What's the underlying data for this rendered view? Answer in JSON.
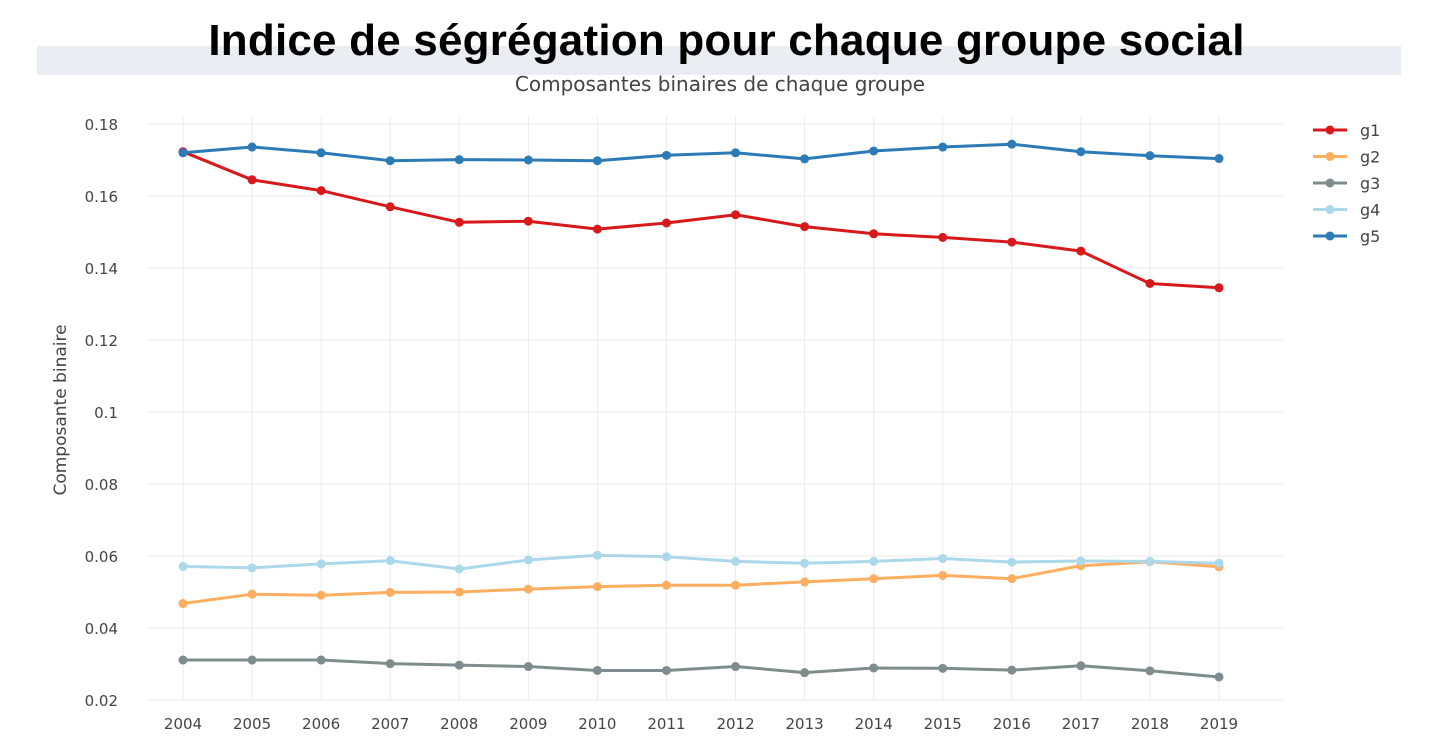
{
  "title": "Indice de ségrégation pour chaque groupe social",
  "chart_data": {
    "type": "line",
    "subtitle": "Composantes binaires de chaque groupe",
    "xlabel": "",
    "ylabel": "Composante binaire",
    "x": [
      "2004",
      "2005",
      "2006",
      "2007",
      "2008",
      "2009",
      "2010",
      "2011",
      "2012",
      "2013",
      "2014",
      "2015",
      "2016",
      "2017",
      "2018",
      "2019"
    ],
    "yticks": [
      "0.02",
      "0.04",
      "0.06",
      "0.08",
      "0.1",
      "0.12",
      "0.14",
      "0.16",
      "0.18"
    ],
    "ylim": [
      0.02,
      0.18
    ],
    "grid": true,
    "legend_position": "top-right",
    "series": [
      {
        "name": "g1",
        "color": "#d7191c",
        "values": [
          0.1723,
          0.1645,
          0.1615,
          0.157,
          0.1527,
          0.153,
          0.1508,
          0.1525,
          0.1548,
          0.1515,
          0.1495,
          0.1485,
          0.1472,
          0.1447,
          0.1357,
          0.1345
        ]
      },
      {
        "name": "g2",
        "color": "#fdae61",
        "values": [
          0.0468,
          0.0494,
          0.0491,
          0.0499,
          0.05,
          0.0508,
          0.0515,
          0.0519,
          0.0519,
          0.0528,
          0.0537,
          0.0546,
          0.0537,
          0.0573,
          0.0584,
          0.057
        ]
      },
      {
        "name": "g3",
        "color": "#7f8c8d",
        "values": [
          0.0311,
          0.0311,
          0.0311,
          0.0301,
          0.0297,
          0.0293,
          0.0282,
          0.0282,
          0.0293,
          0.0276,
          0.0289,
          0.0288,
          0.0283,
          0.0295,
          0.0281,
          0.0264
        ]
      },
      {
        "name": "g4",
        "color": "#abd9e9",
        "values": [
          0.0571,
          0.0567,
          0.0578,
          0.0587,
          0.0564,
          0.0589,
          0.0602,
          0.0598,
          0.0585,
          0.058,
          0.0585,
          0.0593,
          0.0583,
          0.0586,
          0.0585,
          0.058
        ]
      },
      {
        "name": "g5",
        "color": "#2c7bb6",
        "values": [
          0.172,
          0.1736,
          0.172,
          0.1698,
          0.1701,
          0.17,
          0.1698,
          0.1713,
          0.172,
          0.1703,
          0.1725,
          0.1736,
          0.1744,
          0.1723,
          0.1712,
          0.1704
        ]
      }
    ]
  }
}
